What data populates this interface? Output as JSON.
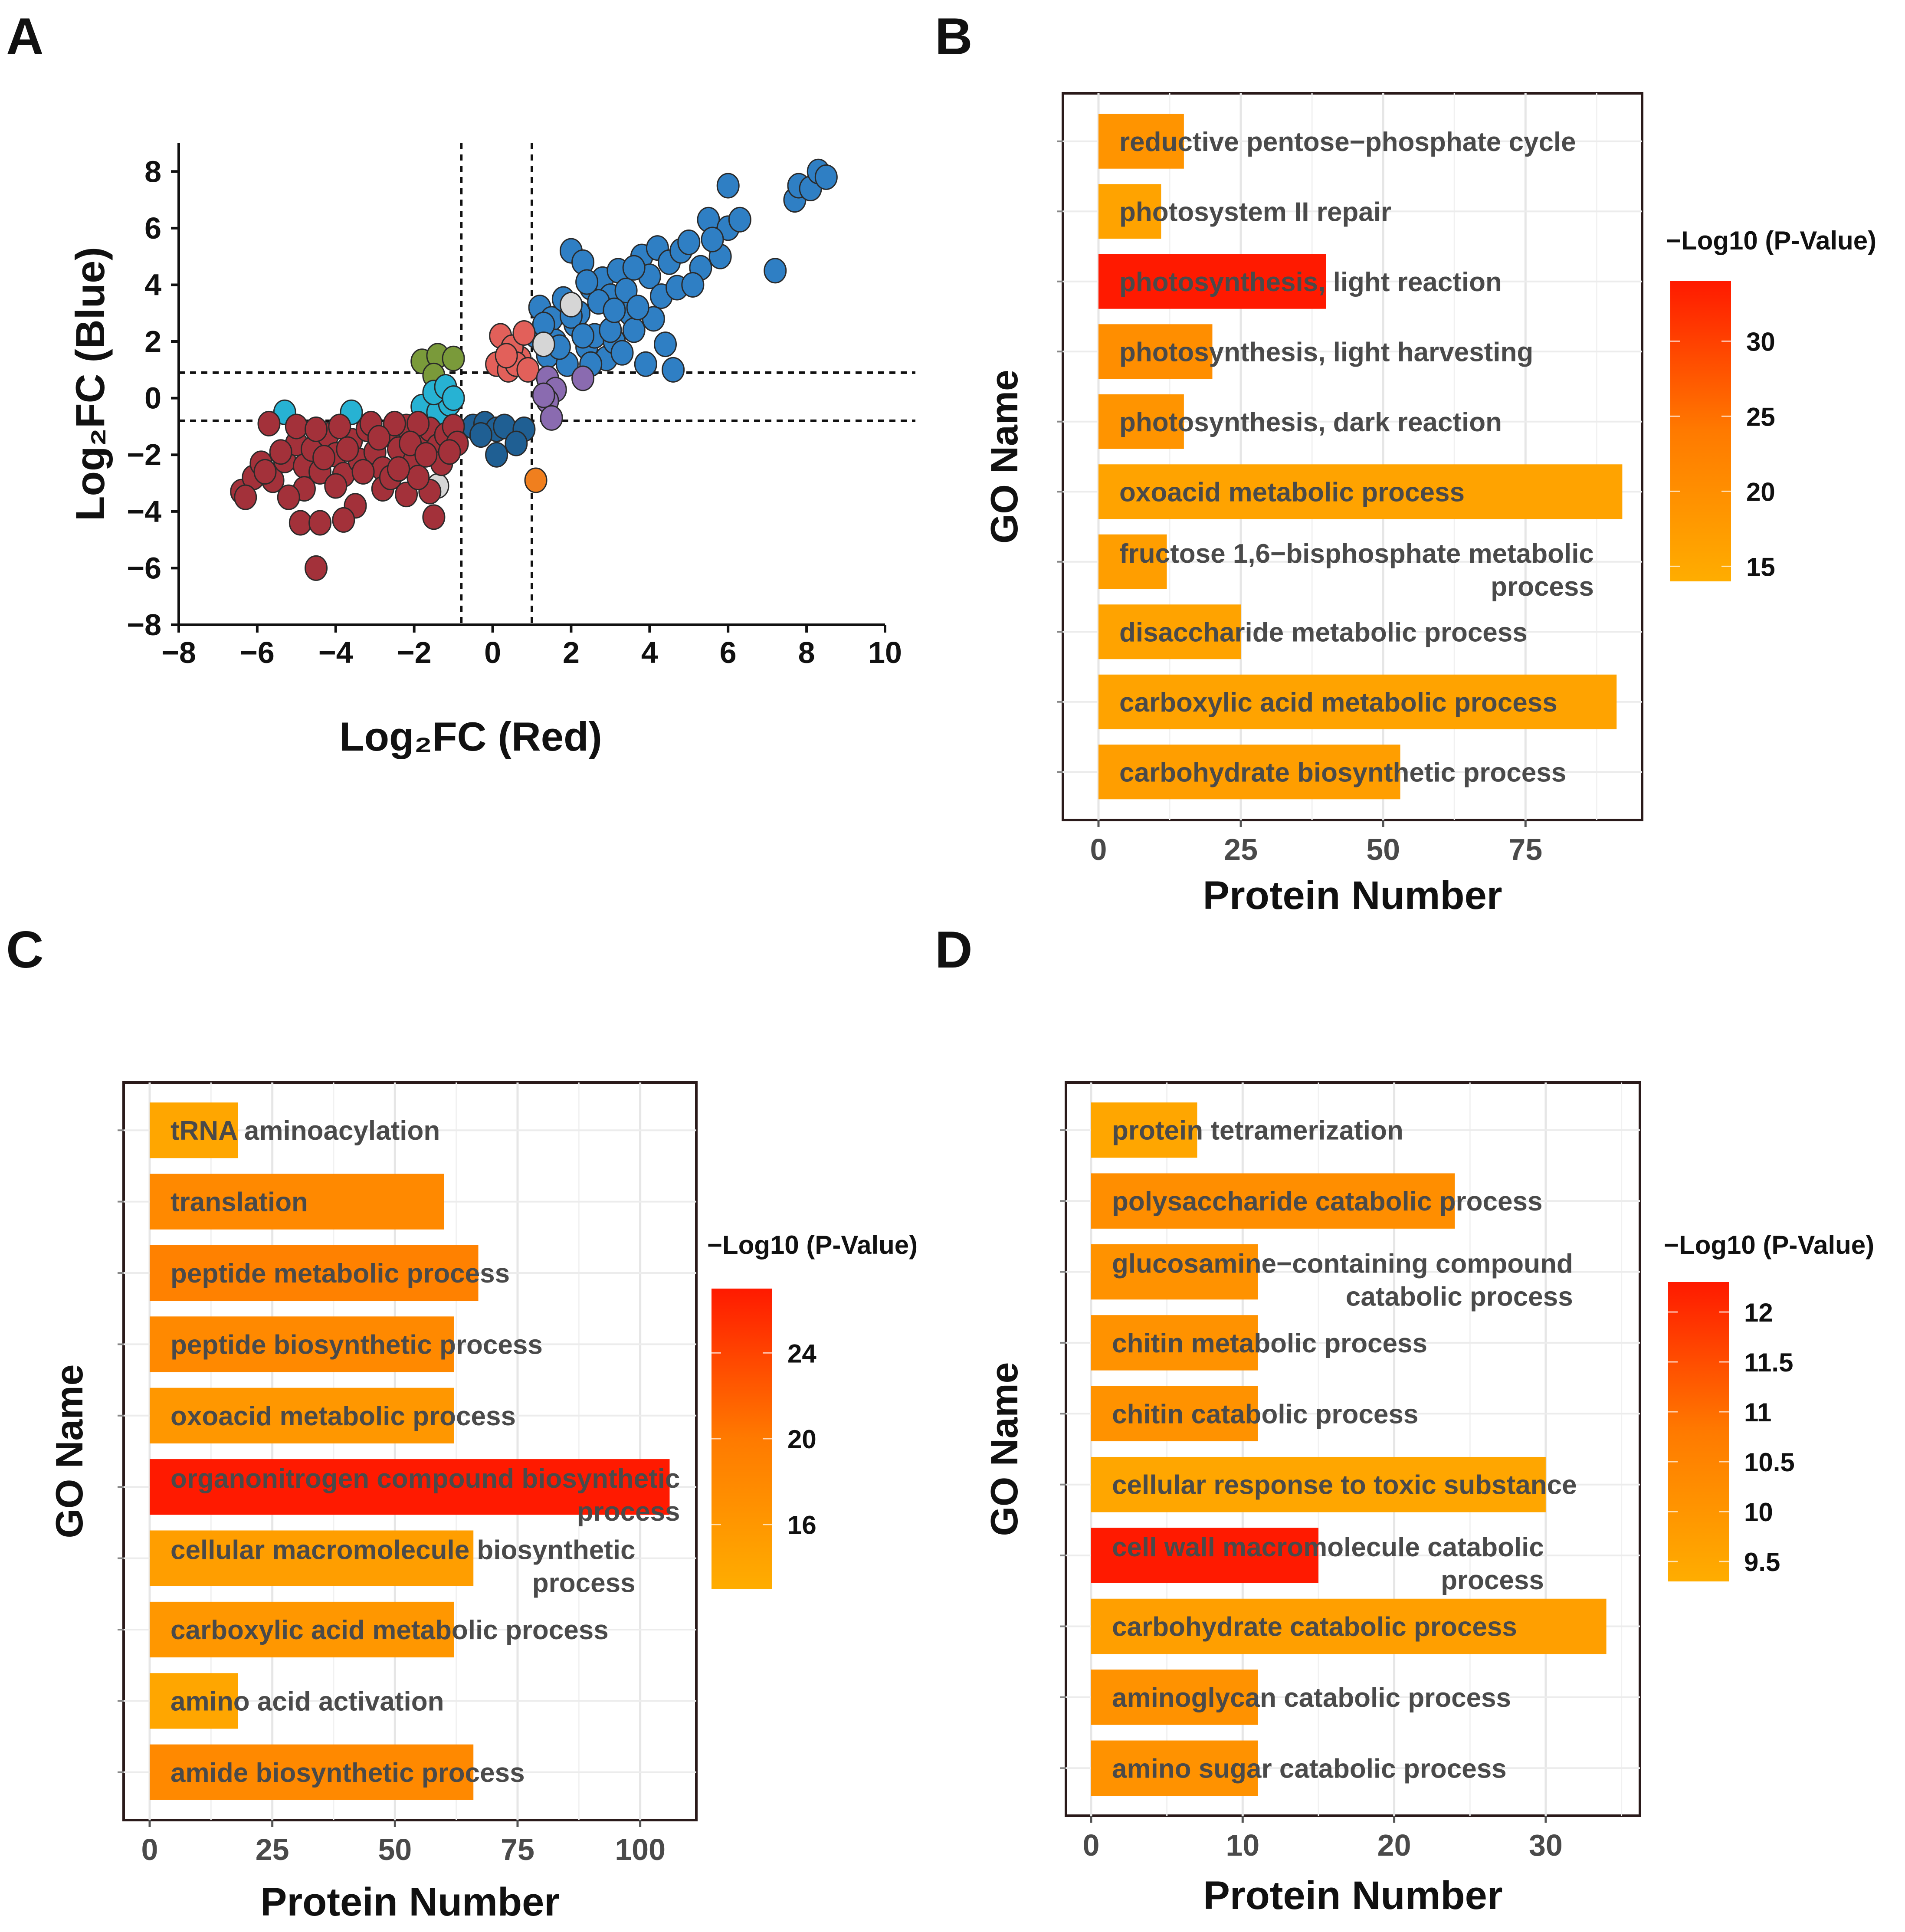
{
  "chart_data": [
    {
      "panel": "A",
      "type": "scatter",
      "xlabel": "Log₂FC (Red)",
      "ylabel": "Log₂FC (Blue)",
      "xlim": [
        -8,
        10
      ],
      "ylim": [
        -8,
        9
      ],
      "xticks": [
        -8,
        -6,
        -4,
        -2,
        0,
        2,
        4,
        6,
        8,
        10
      ],
      "yticks": [
        -8,
        -6,
        -4,
        -2,
        0,
        2,
        4,
        6,
        8
      ],
      "xtick_labels": [
        "−8",
        "−6",
        "−4",
        "−2",
        "0",
        "2",
        "4",
        "6",
        "8",
        "10"
      ],
      "ytick_labels": [
        "−8",
        "−6",
        "−4",
        "−2",
        "0",
        "2",
        "4",
        "6",
        "8"
      ],
      "threshold_x": [
        -0.8,
        1.0
      ],
      "threshold_y": [
        -0.8,
        0.9
      ],
      "series": [
        {
          "name": "up-both",
          "color": "#2f7fc4",
          "points": [
            [
              1.2,
              3.2
            ],
            [
              1.5,
              2.8
            ],
            [
              1.8,
              3.5
            ],
            [
              2.0,
              5.2
            ],
            [
              2.3,
              4.8
            ],
            [
              2.5,
              3.9
            ],
            [
              2.8,
              4.2
            ],
            [
              3.0,
              3.6
            ],
            [
              3.2,
              4.5
            ],
            [
              3.5,
              3.0
            ],
            [
              3.8,
              5.0
            ],
            [
              4.0,
              4.3
            ],
            [
              4.2,
              5.3
            ],
            [
              4.5,
              4.8
            ],
            [
              4.8,
              5.2
            ],
            [
              5.0,
              5.5
            ],
            [
              5.3,
              4.6
            ],
            [
              5.5,
              6.3
            ],
            [
              5.8,
              5.0
            ],
            [
              6.0,
              6.0
            ],
            [
              6.3,
              6.3
            ],
            [
              6.0,
              7.5
            ],
            [
              7.2,
              4.5
            ],
            [
              7.7,
              7.0
            ],
            [
              7.8,
              7.5
            ],
            [
              8.1,
              7.4
            ],
            [
              8.3,
              8.0
            ],
            [
              8.5,
              7.8
            ],
            [
              1.1,
              2.2
            ],
            [
              1.4,
              1.5
            ],
            [
              1.6,
              2.0
            ],
            [
              1.9,
              1.2
            ],
            [
              2.1,
              2.6
            ],
            [
              2.4,
              1.8
            ],
            [
              2.6,
              2.2
            ],
            [
              2.9,
              1.4
            ],
            [
              3.1,
              2.0
            ],
            [
              3.3,
              1.6
            ],
            [
              3.6,
              2.4
            ],
            [
              3.9,
              1.2
            ],
            [
              4.1,
              2.8
            ],
            [
              4.4,
              1.9
            ],
            [
              4.6,
              1.0
            ],
            [
              2.2,
              3.0
            ],
            [
              2.7,
              3.4
            ],
            [
              3.4,
              3.8
            ],
            [
              2.0,
              2.9
            ],
            [
              1.3,
              2.6
            ],
            [
              1.7,
              1.8
            ],
            [
              2.5,
              1.2
            ],
            [
              3.0,
              2.4
            ],
            [
              3.7,
              3.2
            ],
            [
              4.3,
              3.6
            ],
            [
              2.4,
              4.1
            ],
            [
              3.6,
              4.6
            ],
            [
              4.7,
              3.9
            ],
            [
              5.1,
              4.0
            ],
            [
              5.6,
              5.6
            ],
            [
              3.1,
              3.1
            ],
            [
              2.3,
              2.2
            ]
          ]
        },
        {
          "name": "up-red-only",
          "color": "#e2605a",
          "points": [
            [
              0.1,
              1.2
            ],
            [
              0.4,
              1.0
            ],
            [
              0.7,
              1.4
            ],
            [
              0.2,
              2.2
            ],
            [
              0.5,
              1.8
            ],
            [
              0.8,
              2.3
            ],
            [
              0.6,
              1.2
            ],
            [
              0.9,
              1.0
            ],
            [
              0.35,
              1.5
            ]
          ]
        },
        {
          "name": "grey",
          "color": "#d6d6d6",
          "points": [
            [
              2.0,
              3.3
            ],
            [
              1.3,
              1.9
            ],
            [
              -1.4,
              -3.1
            ]
          ]
        },
        {
          "name": "purple",
          "color": "#8a6bb0",
          "points": [
            [
              1.4,
              0.7
            ],
            [
              1.6,
              0.3
            ],
            [
              1.4,
              -0.1
            ],
            [
              1.5,
              -0.7
            ],
            [
              1.3,
              0.1
            ],
            [
              2.3,
              0.7
            ]
          ]
        },
        {
          "name": "green",
          "color": "#7a9a3a",
          "points": [
            [
              -1.8,
              1.3
            ],
            [
              -1.4,
              1.5
            ],
            [
              -1.0,
              1.4
            ],
            [
              -1.5,
              0.8
            ]
          ]
        },
        {
          "name": "cyan",
          "color": "#27b2d3",
          "points": [
            [
              -5.3,
              -0.5
            ],
            [
              -3.6,
              -0.5
            ],
            [
              -1.8,
              -0.3
            ],
            [
              -1.4,
              -0.5
            ],
            [
              -1.1,
              -0.2
            ],
            [
              -1.5,
              0.2
            ],
            [
              -1.2,
              0.4
            ],
            [
              -1.0,
              0.0
            ]
          ]
        },
        {
          "name": "navy",
          "color": "#1f5f93",
          "points": [
            [
              -0.5,
              -1.0
            ],
            [
              -0.2,
              -0.9
            ],
            [
              0.1,
              -1.1
            ],
            [
              0.3,
              -1.0
            ],
            [
              0.8,
              -1.1
            ],
            [
              -0.3,
              -1.3
            ],
            [
              0.1,
              -2.0
            ],
            [
              0.6,
              -1.6
            ]
          ]
        },
        {
          "name": "orange",
          "color": "#f07f1e",
          "points": [
            [
              1.1,
              -2.9
            ]
          ]
        },
        {
          "name": "down-both",
          "color": "#a3313a",
          "points": [
            [
              -6.4,
              -3.3
            ],
            [
              -6.1,
              -2.8
            ],
            [
              -5.9,
              -2.3
            ],
            [
              -5.6,
              -2.9
            ],
            [
              -5.3,
              -2.2
            ],
            [
              -5.0,
              -1.6
            ],
            [
              -4.8,
              -2.4
            ],
            [
              -4.6,
              -1.8
            ],
            [
              -4.4,
              -2.6
            ],
            [
              -4.2,
              -1.3
            ],
            [
              -4.0,
              -2.0
            ],
            [
              -3.8,
              -2.7
            ],
            [
              -3.6,
              -1.5
            ],
            [
              -3.4,
              -2.2
            ],
            [
              -3.2,
              -1.1
            ],
            [
              -3.0,
              -1.9
            ],
            [
              -2.8,
              -2.5
            ],
            [
              -2.6,
              -1.3
            ],
            [
              -2.4,
              -1.8
            ],
            [
              -2.2,
              -1.0
            ],
            [
              -2.0,
              -2.2
            ],
            [
              -1.8,
              -1.5
            ],
            [
              -1.6,
              -1.1
            ],
            [
              -1.4,
              -1.7
            ],
            [
              -1.2,
              -1.3
            ],
            [
              -1.0,
              -1.0
            ],
            [
              -0.9,
              -1.6
            ],
            [
              -5.7,
              -0.9
            ],
            [
              -5.0,
              -1.0
            ],
            [
              -4.5,
              -1.1
            ],
            [
              -3.9,
              -1.0
            ],
            [
              -3.1,
              -0.9
            ],
            [
              -2.5,
              -0.9
            ],
            [
              -1.9,
              -0.9
            ],
            [
              -4.8,
              -3.2
            ],
            [
              -4.0,
              -3.1
            ],
            [
              -3.5,
              -3.8
            ],
            [
              -2.8,
              -3.2
            ],
            [
              -2.2,
              -3.4
            ],
            [
              -1.6,
              -3.3
            ],
            [
              -1.5,
              -4.2
            ],
            [
              -4.9,
              -4.4
            ],
            [
              -4.4,
              -4.4
            ],
            [
              -3.8,
              -4.3
            ],
            [
              -4.5,
              -6.0
            ],
            [
              -5.2,
              -3.5
            ],
            [
              -2.6,
              -2.8
            ],
            [
              -3.3,
              -2.6
            ],
            [
              -1.9,
              -2.8
            ],
            [
              -1.3,
              -2.3
            ],
            [
              -6.3,
              -3.5
            ],
            [
              -5.8,
              -2.6
            ],
            [
              -2.9,
              -1.4
            ],
            [
              -2.1,
              -1.6
            ],
            [
              -1.1,
              -1.9
            ],
            [
              -3.7,
              -1.8
            ],
            [
              -4.3,
              -2.1
            ],
            [
              -5.4,
              -1.9
            ],
            [
              -2.4,
              -2.5
            ],
            [
              -1.7,
              -2.0
            ]
          ]
        }
      ]
    },
    {
      "panel": "B",
      "type": "bar",
      "orientation": "horizontal",
      "xlabel": "Protein Number",
      "ylabel": "GO Name",
      "xlim": [
        0,
        97
      ],
      "xticks": [
        0,
        25,
        50,
        75
      ],
      "legend_title": "−Log10 (P-Value)",
      "legend_range": [
        14,
        34
      ],
      "legend_ticks": [
        15,
        20,
        25,
        30
      ],
      "legend_tick_labels": [
        "15",
        "20",
        "25",
        "30"
      ],
      "categories": [
        [
          "reductive pentose−phosphate cycle"
        ],
        [
          "photosystem II repair"
        ],
        [
          "photosynthesis, light reaction"
        ],
        [
          "photosynthesis, light harvesting"
        ],
        [
          "photosynthesis, dark reaction"
        ],
        [
          "oxoacid metabolic process"
        ],
        [
          "fructose 1,6−bisphosphate metabolic",
          "process"
        ],
        [
          "disaccharide metabolic process"
        ],
        [
          "carboxylic acid metabolic process"
        ],
        [
          "carbohydrate biosynthetic process"
        ]
      ],
      "values": [
        15,
        11,
        40,
        20,
        15,
        92,
        12,
        25,
        91,
        53
      ],
      "neglog10_p": [
        19,
        16,
        34,
        20,
        19,
        16,
        17,
        16,
        16,
        17
      ]
    },
    {
      "panel": "C",
      "type": "bar",
      "orientation": "horizontal",
      "xlabel": "Protein Number",
      "ylabel": "GO Name",
      "xlim": [
        0,
        111
      ],
      "xticks": [
        0,
        25,
        50,
        75,
        100
      ],
      "legend_title": "−Log10 (P-Value)",
      "legend_range": [
        13,
        27
      ],
      "legend_ticks": [
        16,
        20,
        24
      ],
      "legend_tick_labels": [
        "16",
        "20",
        "24"
      ],
      "categories": [
        [
          "tRNA aminoacylation"
        ],
        [
          "translation"
        ],
        [
          "peptide metabolic process"
        ],
        [
          "peptide biosynthetic process"
        ],
        [
          "oxoacid metabolic process"
        ],
        [
          "organonitrogen compound biosynthetic",
          "process"
        ],
        [
          "cellular macromolecule biosynthetic",
          "process"
        ],
        [
          "carboxylic acid metabolic process"
        ],
        [
          "amino acid activation"
        ],
        [
          "amide biosynthetic process"
        ]
      ],
      "values": [
        18,
        60,
        67,
        62,
        62,
        106,
        66,
        62,
        18,
        66
      ],
      "neglog10_p": [
        14,
        18,
        19,
        18,
        16,
        27,
        15,
        16,
        14,
        18
      ]
    },
    {
      "panel": "D",
      "type": "bar",
      "orientation": "horizontal",
      "xlabel": "Protein Number",
      "ylabel": "GO Name",
      "xlim": [
        0,
        35.5
      ],
      "xticks": [
        0,
        10,
        20,
        30
      ],
      "legend_title": "−Log10 (P-Value)",
      "legend_range": [
        9.3,
        12.3
      ],
      "legend_ticks": [
        9.5,
        10,
        10.5,
        11,
        11.5,
        12
      ],
      "legend_tick_labels": [
        "9.5",
        "10",
        "10.5",
        "11",
        "11.5",
        "12"
      ],
      "categories": [
        [
          "protein tetramerization"
        ],
        [
          "polysaccharide catabolic process"
        ],
        [
          "glucosamine−containing compound",
          "catabolic process"
        ],
        [
          "chitin metabolic process"
        ],
        [
          "chitin catabolic process"
        ],
        [
          "cellular response to toxic substance"
        ],
        [
          "cell wall macromolecule catabolic",
          "process"
        ],
        [
          "carbohydrate catabolic process"
        ],
        [
          "aminoglycan catabolic process"
        ],
        [
          "amino sugar catabolic process"
        ]
      ],
      "values": [
        7,
        24,
        11,
        11,
        11,
        30,
        15,
        34,
        11,
        11
      ],
      "neglog10_p": [
        9.5,
        10.2,
        10.1,
        10.1,
        10.1,
        9.5,
        12.3,
        9.7,
        10.1,
        10.1
      ]
    }
  ],
  "panel_letters": [
    "A",
    "B",
    "C",
    "D"
  ]
}
